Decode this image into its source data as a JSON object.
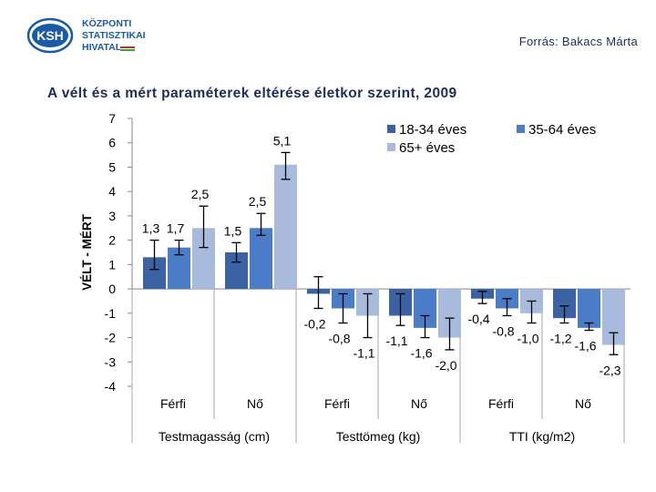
{
  "header": {
    "logo": {
      "abbr": "KSH",
      "line1": "KÖZPONTI",
      "line2": "STATISZTIKAI",
      "line3": "HIVATAL"
    },
    "source": "Forrás: Bakacs Márta"
  },
  "colors": {
    "series_18_34": "#3b62a4",
    "series_35_64": "#4a7cc8",
    "series_65plus": "#a9bbdc",
    "title": "#1f2d5a",
    "logo_blue": "#1b5aa6",
    "logo_green": "#3aa53a",
    "logo_red": "#d8282f"
  },
  "chart_data": {
    "type": "bar",
    "title": "A vélt és a mért paraméterek eltérése életkor szerint, 2009",
    "ylabel": "VÉLT - MÉRT",
    "ylim": [
      -4,
      7
    ],
    "yticks": [
      -4,
      -3,
      -2,
      -1,
      0,
      1,
      2,
      3,
      4,
      5,
      6,
      7
    ],
    "yticklabels": [
      "-4",
      "-3",
      "-2",
      "-1",
      "0",
      "1",
      "2",
      "3",
      "4",
      "5",
      "6",
      "7"
    ],
    "grid": false,
    "error_bars": true,
    "legend_position": "top-right",
    "groups": [
      {
        "name": "Testmagasság (cm)",
        "categories": [
          "Férfi",
          "Nő"
        ]
      },
      {
        "name": "Testtömeg (kg)",
        "categories": [
          "Férfi",
          "Nő"
        ]
      },
      {
        "name": "TTI (kg/m2)",
        "categories": [
          "Férfi",
          "Nő"
        ]
      }
    ],
    "series": [
      {
        "name": "18-34 éves",
        "values": [
          1.3,
          1.5,
          -0.2,
          -1.1,
          -0.4,
          -1.2
        ],
        "labels": [
          "1,3",
          "1,5",
          "-0,2",
          "-1,1",
          "-0,4",
          "-1,2"
        ],
        "error_low": [
          0.8,
          1.1,
          -0.8,
          -1.5,
          -0.6,
          -1.4
        ],
        "error_high": [
          2.0,
          1.9,
          0.5,
          -0.2,
          -0.1,
          -0.7
        ]
      },
      {
        "name": "35-64 éves",
        "values": [
          1.7,
          2.5,
          -0.8,
          -1.6,
          -0.8,
          -1.6
        ],
        "labels": [
          "1,7",
          "2,5",
          "-0,8",
          "-1,6",
          "-0,8",
          "-1,6"
        ],
        "error_low": [
          1.4,
          2.2,
          -1.4,
          -2.0,
          -1.1,
          -1.7
        ],
        "error_high": [
          2.0,
          3.1,
          -0.2,
          -1.1,
          -0.4,
          -1.4
        ]
      },
      {
        "name": "65+ éves",
        "values": [
          2.5,
          5.1,
          -1.1,
          -2.0,
          -1.0,
          -2.3
        ],
        "labels": [
          "2,5",
          "5,1",
          "-1,1",
          "-2,0",
          "-1,0",
          "-2,3"
        ],
        "error_low": [
          1.7,
          4.5,
          -2.0,
          -2.5,
          -1.4,
          -2.7
        ],
        "error_high": [
          3.4,
          5.6,
          -0.2,
          -1.2,
          -0.5,
          -1.8
        ]
      }
    ]
  }
}
